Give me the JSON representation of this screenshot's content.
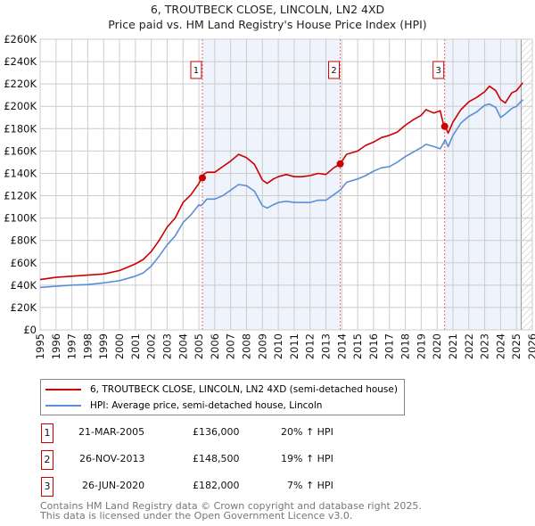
{
  "chart_data": {
    "type": "line",
    "title": "6, TROUTBECK CLOSE, LINCOLN, LN2 4XD",
    "subtitle": "Price paid vs. HM Land Registry's House Price Index (HPI)",
    "xlabel": "",
    "ylabel": "",
    "xlim": [
      1995,
      2026
    ],
    "ylim": [
      0,
      260000
    ],
    "grid": true,
    "x_ticks": [
      "1995",
      "1996",
      "1997",
      "1998",
      "1999",
      "2000",
      "2001",
      "2002",
      "2003",
      "2004",
      "2005",
      "2006",
      "2007",
      "2008",
      "2009",
      "2010",
      "2011",
      "2012",
      "2013",
      "2014",
      "2015",
      "2016",
      "2017",
      "2018",
      "2019",
      "2020",
      "2021",
      "2022",
      "2023",
      "2024",
      "2025",
      "2026"
    ],
    "y_ticks": [
      {
        "value": 0,
        "label": "£0"
      },
      {
        "value": 20000,
        "label": "£20K"
      },
      {
        "value": 40000,
        "label": "£40K"
      },
      {
        "value": 60000,
        "label": "£60K"
      },
      {
        "value": 80000,
        "label": "£80K"
      },
      {
        "value": 100000,
        "label": "£100K"
      },
      {
        "value": 120000,
        "label": "£120K"
      },
      {
        "value": 140000,
        "label": "£140K"
      },
      {
        "value": 160000,
        "label": "£160K"
      },
      {
        "value": 180000,
        "label": "£180K"
      },
      {
        "value": 200000,
        "label": "£200K"
      },
      {
        "value": 220000,
        "label": "£220K"
      },
      {
        "value": 240000,
        "label": "£240K"
      },
      {
        "value": 260000,
        "label": "£260K"
      }
    ],
    "series": [
      {
        "name": "6, TROUTBECK CLOSE, LINCOLN, LN2 4XD (semi-detached house)",
        "color": "#cc0000",
        "x": [
          1995,
          1996,
          1997,
          1998,
          1999,
          2000,
          2000.5,
          2001,
          2001.5,
          2002,
          2002.5,
          2003,
          2003.5,
          2004,
          2004.5,
          2005,
          2005.1,
          2005.2,
          2005.5,
          2006,
          2006.5,
          2007,
          2007.5,
          2008,
          2008.5,
          2009,
          2009.3,
          2009.7,
          2010,
          2010.5,
          2011,
          2011.5,
          2012,
          2012.5,
          2013,
          2013.5,
          2013.9,
          2014.3,
          2015,
          2015.5,
          2016,
          2016.5,
          2017,
          2017.5,
          2018,
          2018.5,
          2019,
          2019.3,
          2019.8,
          2020.2,
          2020.4,
          2020.5,
          2020.7,
          2021,
          2021.5,
          2022,
          2022.5,
          2023,
          2023.3,
          2023.7,
          2024,
          2024.3,
          2024.7,
          2025,
          2025.4
        ],
        "values": [
          45000,
          47000,
          48000,
          49000,
          50000,
          53000,
          56000,
          59000,
          63000,
          70000,
          80000,
          92000,
          100000,
          114000,
          121000,
          131000,
          134000,
          138000,
          141000,
          141000,
          146000,
          151000,
          157000,
          154000,
          148000,
          134000,
          131000,
          135000,
          137000,
          139000,
          137000,
          137000,
          138000,
          140000,
          139000,
          145000,
          148500,
          157000,
          160000,
          165000,
          168000,
          172000,
          174000,
          177000,
          183000,
          188000,
          192000,
          197000,
          194000,
          196000,
          184000,
          182000,
          176000,
          186000,
          197000,
          204000,
          208000,
          213000,
          218000,
          214000,
          206000,
          203000,
          212000,
          214000,
          221000
        ]
      },
      {
        "name": "HPI: Average price, semi-detached house, Lincoln",
        "color": "#5b8fd4",
        "x": [
          1995,
          1996,
          1997,
          1998,
          1999,
          2000,
          2000.5,
          2001,
          2001.5,
          2002,
          2002.5,
          2003,
          2003.5,
          2004,
          2004.5,
          2005,
          2005.1,
          2005.2,
          2005.5,
          2006,
          2006.5,
          2007,
          2007.5,
          2008,
          2008.5,
          2009,
          2009.3,
          2009.7,
          2010,
          2010.5,
          2011,
          2011.5,
          2012,
          2012.5,
          2013,
          2013.5,
          2013.9,
          2014.3,
          2015,
          2015.5,
          2016,
          2016.5,
          2017,
          2017.5,
          2018,
          2018.5,
          2019,
          2019.3,
          2019.8,
          2020.2,
          2020.4,
          2020.5,
          2020.7,
          2021,
          2021.5,
          2022,
          2022.5,
          2023,
          2023.3,
          2023.7,
          2024,
          2024.3,
          2024.7,
          2025,
          2025.4
        ],
        "values": [
          38000,
          39000,
          40000,
          40500,
          42000,
          44000,
          46000,
          48000,
          51000,
          57000,
          66000,
          76000,
          84000,
          96000,
          103000,
          112000,
          111000,
          112000,
          117000,
          117000,
          120000,
          125000,
          130000,
          129000,
          124000,
          111000,
          109000,
          112000,
          114000,
          115000,
          114000,
          114000,
          114000,
          116000,
          116000,
          121000,
          125000,
          132000,
          135000,
          138000,
          142000,
          145000,
          146000,
          150000,
          155000,
          159000,
          163000,
          166000,
          164000,
          162000,
          167000,
          170000,
          164000,
          174000,
          185000,
          191000,
          195000,
          201000,
          202000,
          199000,
          190000,
          193000,
          198000,
          200000,
          206000
        ]
      }
    ],
    "sales": [
      {
        "id": "1",
        "x": 2005.22,
        "value": 136000
      },
      {
        "id": "2",
        "x": 2013.9,
        "value": 148500
      },
      {
        "id": "3",
        "x": 2020.48,
        "value": 182000
      }
    ],
    "forecast_hatch_start": 2025.3,
    "legend_position": "below"
  },
  "legend": [
    {
      "label": "6, TROUTBECK CLOSE, LINCOLN, LN2 4XD (semi-detached house)",
      "color": "#cc0000"
    },
    {
      "label": "HPI: Average price, semi-detached house, Lincoln",
      "color": "#5b8fd4"
    }
  ],
  "transactions": [
    {
      "id": "1",
      "date": "21-MAR-2005",
      "price": "£136,000",
      "hpi": "20% ↑ HPI"
    },
    {
      "id": "2",
      "date": "26-NOV-2013",
      "price": "£148,500",
      "hpi": "19% ↑ HPI"
    },
    {
      "id": "3",
      "date": "26-JUN-2020",
      "price": "£182,000",
      "hpi": "7% ↑ HPI"
    }
  ],
  "footer": [
    "Contains HM Land Registry data © Crown copyright and database right 2025.",
    "This data is licensed under the Open Government Licence v3.0."
  ]
}
